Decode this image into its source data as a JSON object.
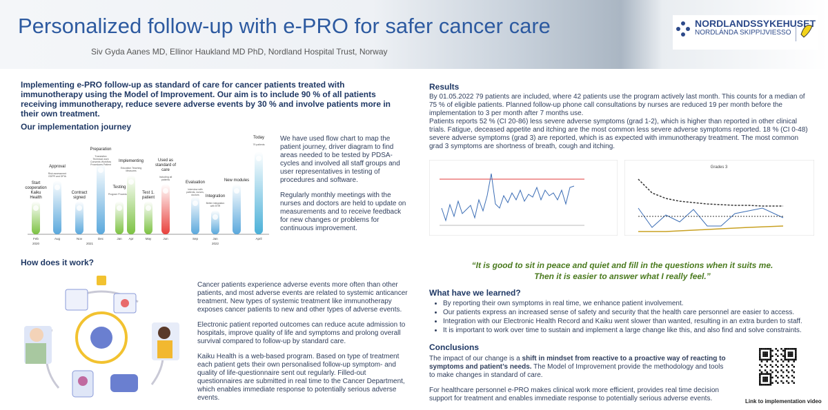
{
  "header": {
    "title": "Personalized follow-up with e-PRO for safer cancer care",
    "authors": "Siv Gyda Aanes MD, Ellinor Haukland MD PhD, Nordland Hospital Trust, Norway",
    "logo_name": "NORDLANDSSYKEHUSET",
    "logo_sub": "NORDLÁNDA SKIPPIJVIESSO"
  },
  "intro": "Implementing e-PRO follow-up as standard of care for cancer patients treated with immunotherapy using the Model of Improvement. Our aim is to include 90 % of all patients receiving immunotherapy, reduce severe adverse events by 30 % and involve patients more in their own treatment.",
  "journey": {
    "heading": "Our implementation journey",
    "milestones": [
      {
        "title": "Start cooperation Kaiku Health"
      },
      {
        "title": "Approval",
        "detail": "Risk assessment GDPR and DPIA"
      },
      {
        "title": "Contract signed"
      },
      {
        "title": "Preparation",
        "detail": "Translation Technical work Consents Workflow Procedures Patient information"
      },
      {
        "title": "Testing",
        "detail": "Program Procedures"
      },
      {
        "title": "Implementing",
        "detail": "Education Teaching Measures"
      },
      {
        "title": "Test 1. patient"
      },
      {
        "title": "Used as standard of care",
        "detail": "Including all patients"
      },
      {
        "title": "Evaluation",
        "detail": "Interview with patients, nurses, doctors"
      },
      {
        "title": "Integration",
        "detail": "Better integration with EHR"
      },
      {
        "title": "New modules"
      },
      {
        "title": "Today",
        "detail": "79 patients"
      }
    ],
    "months": [
      "Feb",
      "Aug",
      "Nov",
      "Dec",
      "Jan",
      "Apr",
      "May",
      "Jun",
      "Sep",
      "Jan",
      "April"
    ],
    "years": [
      "2020",
      "2021",
      "2022"
    ],
    "paragraphs": [
      "We have used flow chart to map the patient journey, driver diagram to find areas needed to be tested by PDSA-cycles and involved all staff groups and user representatives in testing of procedures and software.",
      "Regularly monthly meetings with the nurses and doctors are held to update on measurements and to receive feedback for new changes or problems for continuous improvement."
    ]
  },
  "how": {
    "heading": "How does it work?",
    "paragraphs": [
      "Cancer patients experience adverse events more often than other patients, and most adverse events are related to systemic anticancer treatment. New types of systemic treatment like immunotherapy exposes cancer patients to new and other types of adverse events.",
      "Electronic patient reported outcomes can reduce acute admission to hospitals, improve quality of life and symptoms and prolong overall survival compared to follow-up by standard care.",
      "Kaiku Health is a web-based program. Based on type of treatment each patient gets their own personalised follow-up symptom- and quality of life-questionnaire sent out regularly. Filled-out questionnaires are submitted in real time to the Cancer Department, which enables immediate response to potentially serious adverse events."
    ]
  },
  "results": {
    "heading": "Results",
    "paragraphs": [
      "By 01.05.2022 79 patients are included, where  42 patients use the program actively last month. This counts for a median of 75 % of eligible patients. Planned follow-up phone call consultations by nurses are reduced 19 per month before the implementation to 3 per month after 7 months use.",
      "Patients reports 52 % (CI 20-86) less severe adverse symptoms (grad 1-2), which is higher than reported in other clinical trials. Fatigue, deceased appetite and itching are the most common less severe adverse symptoms reported. 18 % (CI 0-48) severe adverse symptoms (grad 3) are reported, which is as expected with immunotherapy treatment. The most common grad 3 symptoms are shortness of breath, cough and itching."
    ],
    "chart2_title": "Grades 3"
  },
  "quote": [
    "“It is good to sit in peace and quiet and fill in the questions when it suits me.",
    "Then it is easier to answer what I really feel.”"
  ],
  "learned": {
    "heading": "What have we learned?",
    "bullets": [
      "By reporting their own symptoms in real time, we enhance patient involvement.",
      "Our patients express an increased sense of safety and security that the health care personnel are easier to access.",
      "Integration with our Electronic Health Record and Kaiku went slower than wanted, resulting in an extra burden to staff.",
      "It is important to work over time to sustain and implement a large change like this, and also find and solve constraints."
    ]
  },
  "conclusions": {
    "heading": "Conclusions",
    "p1_start": "The impact of our change is a ",
    "p1_bold": "shift in mindset from reactive to a proactive way of reacting to symptoms and patient’s needs.",
    "p1_end": " The Model of Improvement provide the methodology and tools to make changes in standard of care.",
    "p2": "For healthcare personnel e-PRO makes clinical work more efficient, provides real time decision support for treatment and enables immediate response to potentially serious adverse events.",
    "qr_caption": "Link to implementation video"
  }
}
